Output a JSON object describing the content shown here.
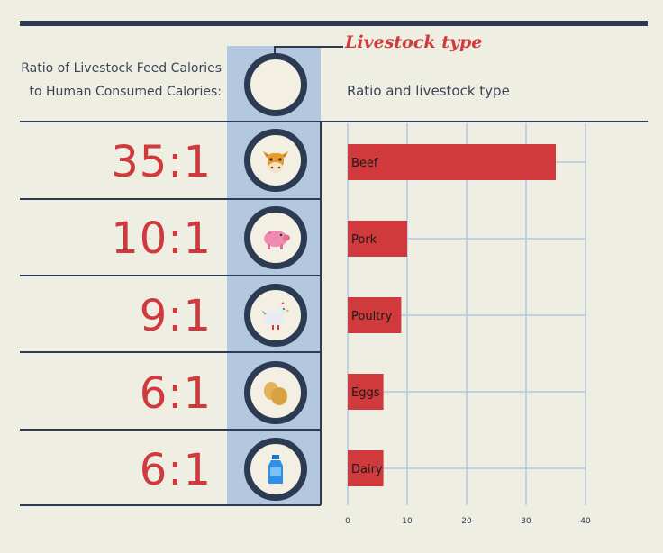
{
  "header": {
    "left_line1": "Ratio of Livestock Feed Calories",
    "left_line2": "to Human Consumed Calories:",
    "legend_title": "Livestock type",
    "chart_title": "Ratio and livestock type"
  },
  "rows": [
    {
      "ratio": "35:1",
      "icon": "cow-icon"
    },
    {
      "ratio": "10:1",
      "icon": "pig-icon"
    },
    {
      "ratio": "9:1",
      "icon": "chicken-icon"
    },
    {
      "ratio": "6:1",
      "icon": "eggs-icon"
    },
    {
      "ratio": "6:1",
      "icon": "milk-bottle-icon"
    }
  ],
  "colors": {
    "accent": "#d03a3c",
    "dark": "#2c3a52",
    "icon_column": "#b3c7df",
    "grid": "#b3c7df",
    "background": "#eeeee2"
  },
  "chart_data": {
    "type": "bar",
    "orientation": "horizontal",
    "categories": [
      "Beef",
      "Pork",
      "Poultry",
      "Eggs",
      "Dairy"
    ],
    "values": [
      35,
      10,
      9,
      6,
      6
    ],
    "title": "Ratio and livestock type",
    "xlabel": "",
    "ylabel": "",
    "xlim": [
      0,
      40
    ],
    "xticks": [
      0,
      10,
      20,
      30,
      40
    ],
    "grid": true
  }
}
